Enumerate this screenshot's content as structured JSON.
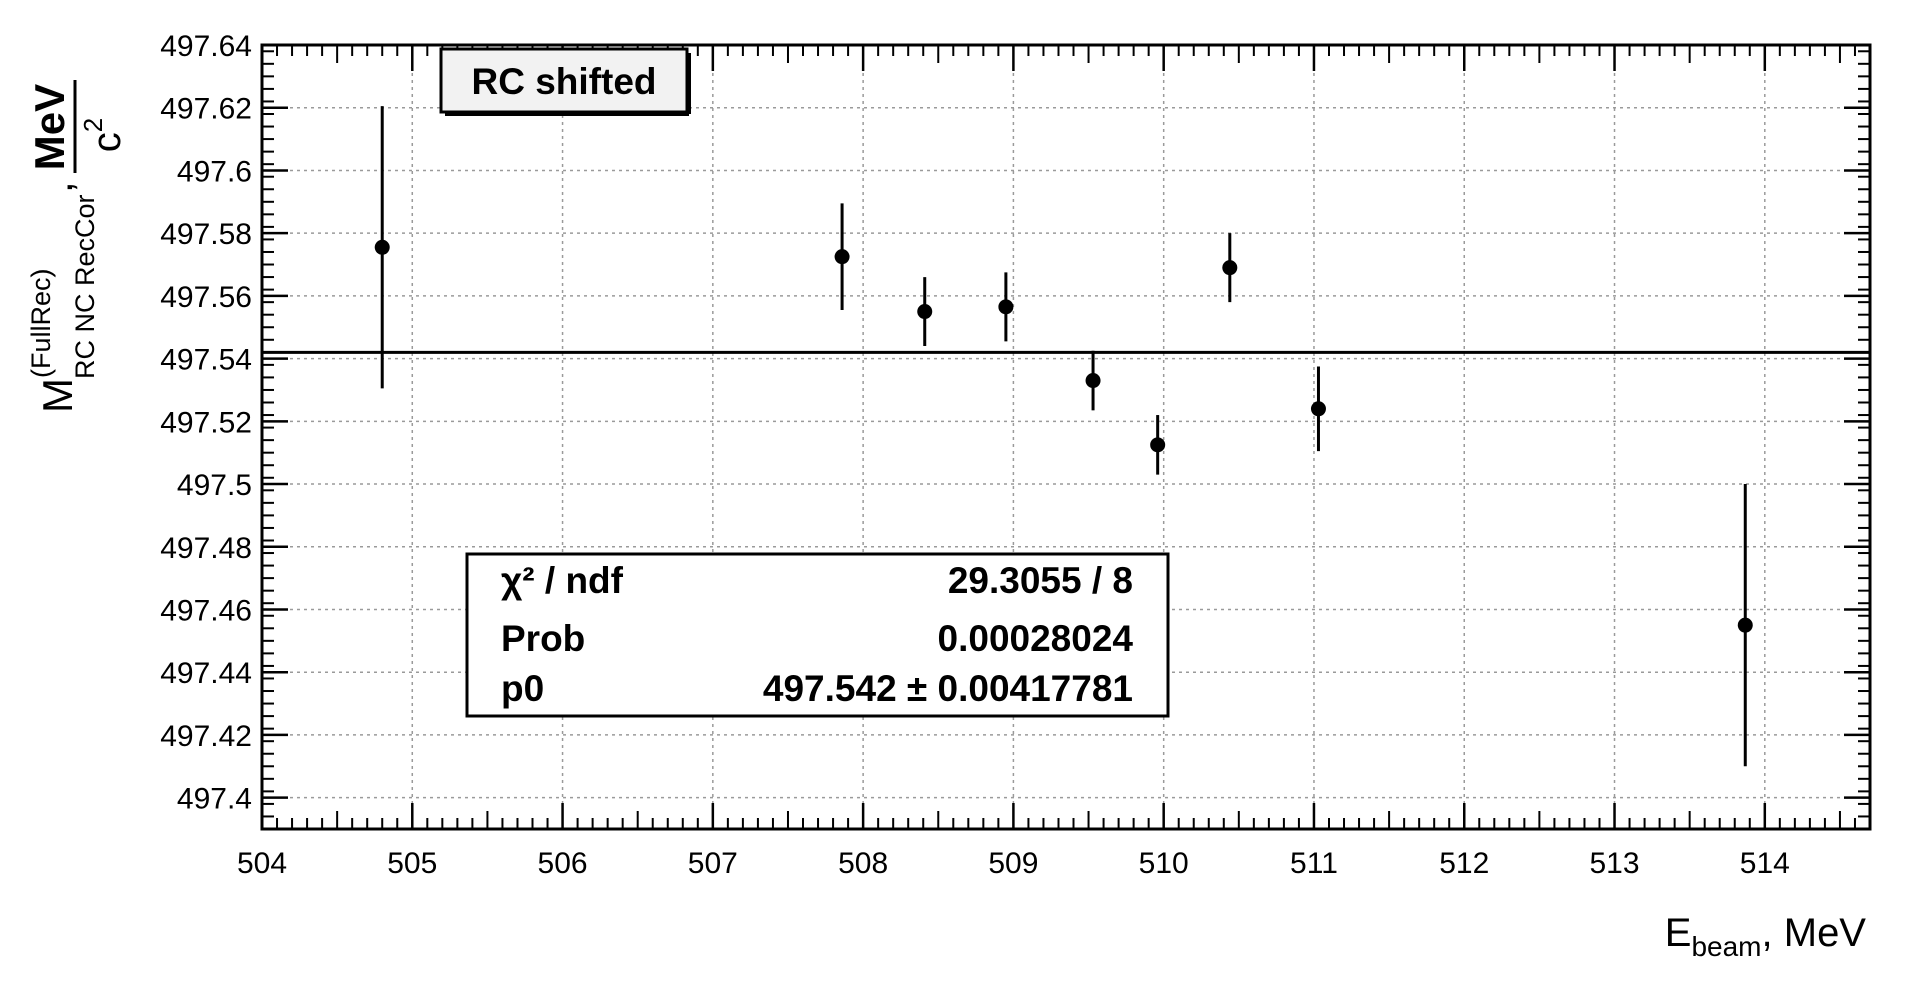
{
  "chart_data": {
    "type": "scatter",
    "title": "RC shifted",
    "xlabel": {
      "main": "E",
      "sub": "beam",
      "rest": ", MeV"
    },
    "ylabel": {
      "main": "M",
      "sup": "(FullRec)",
      "sub": "RC NC RecCor",
      "unit_num": "MeV",
      "unit_den": "c",
      "unit_den_sup": "2",
      "sep": ","
    },
    "xlim": [
      504,
      514.7
    ],
    "ylim": [
      497.39,
      497.64
    ],
    "x_ticks": [
      "504",
      "505",
      "506",
      "507",
      "508",
      "509",
      "510",
      "511",
      "512",
      "513",
      "514"
    ],
    "y_ticks": [
      "497.4",
      "497.42",
      "497.44",
      "497.46",
      "497.48",
      "497.5",
      "497.52",
      "497.54",
      "497.56",
      "497.58",
      "497.6",
      "497.62",
      "497.64"
    ],
    "grid": true,
    "series": [
      {
        "points": [
          {
            "x": 504.8,
            "y": 497.5755,
            "err": 0.045
          },
          {
            "x": 507.86,
            "y": 497.5725,
            "err": 0.017
          },
          {
            "x": 508.41,
            "y": 497.555,
            "err": 0.011
          },
          {
            "x": 508.95,
            "y": 497.5565,
            "err": 0.011
          },
          {
            "x": 509.53,
            "y": 497.533,
            "err": 0.0095
          },
          {
            "x": 509.96,
            "y": 497.5125,
            "err": 0.0095
          },
          {
            "x": 510.44,
            "y": 497.569,
            "err": 0.011
          },
          {
            "x": 511.03,
            "y": 497.524,
            "err": 0.0135
          },
          {
            "x": 513.87,
            "y": 497.455,
            "err": 0.045
          }
        ]
      }
    ],
    "fit_line": {
      "y": 497.542
    },
    "stats": [
      {
        "label": "χ² / ndf",
        "value": "29.3055 / 8"
      },
      {
        "label": "Prob",
        "value": "0.00028024"
      },
      {
        "label": "p0",
        "value": "497.542 ± 0.00417781"
      }
    ]
  }
}
